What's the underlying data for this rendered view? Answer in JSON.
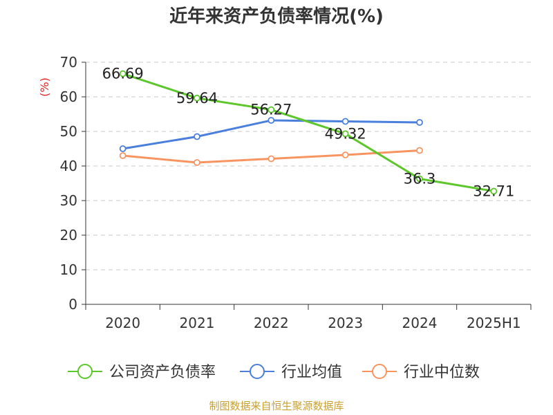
{
  "chart_data": {
    "type": "line",
    "title": "近年来资产负债率情况(%)",
    "ylabel": "(%)",
    "ylim": [
      0,
      70
    ],
    "yticks": [
      0,
      10,
      20,
      30,
      40,
      50,
      60,
      70
    ],
    "categories": [
      "2020",
      "2021",
      "2022",
      "2023",
      "2024",
      "2025H1"
    ],
    "grid": true,
    "legend_position": "bottom",
    "series": [
      {
        "name": "公司资产负债率",
        "color": "#5cc62b",
        "values": [
          66.69,
          59.64,
          56.27,
          49.32,
          36.3,
          32.71
        ],
        "labels": [
          "66.69",
          "59.64",
          "56.27",
          "49.32",
          "36.3",
          "32.71"
        ]
      },
      {
        "name": "行业均值",
        "color": "#4a7fdb",
        "values": [
          45.0,
          48.5,
          53.2,
          52.9,
          52.6,
          null
        ]
      },
      {
        "name": "行业中位数",
        "color": "#f79460",
        "values": [
          43.0,
          41.0,
          42.1,
          43.2,
          44.5,
          null
        ]
      }
    ]
  },
  "source": "制图数据来自恒生聚源数据库"
}
